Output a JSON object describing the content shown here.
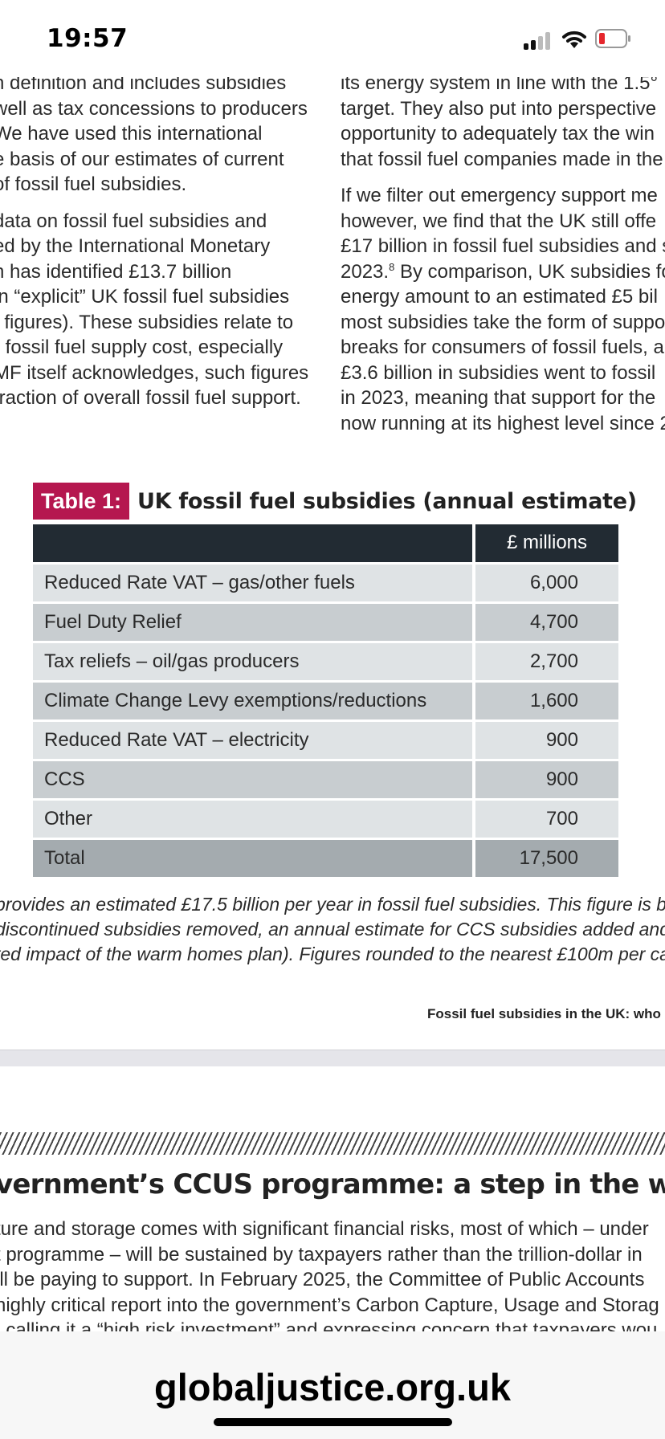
{
  "status_bar": {
    "time": "19:57"
  },
  "document": {
    "left_column": {
      "paragraph_1": [
        "n definition and includes subsidies",
        "well as tax concessions to producers",
        "We have used this international",
        "e basis of our estimates of current",
        "of fossil fuel subsidies."
      ],
      "paragraph_2": [
        "data on fossil fuel subsidies and",
        "ed by the International Monetary",
        "h has identified £13.7 billion",
        "in “explicit” UK fossil fuel subsidies",
        "t figures). These subsidies relate to",
        "r fossil fuel supply cost, especially",
        "MF itself acknowledges, such figures",
        " fraction of overall fossil fuel support."
      ]
    },
    "right_column": {
      "paragraph_1": [
        "its energy system in line with the 1.5°",
        "target. They also put into perspective",
        "opportunity to adequately tax the win",
        "that fossil fuel companies made in the"
      ],
      "paragraph_2": [
        "If we filter out emergency support me",
        "however, we find that the UK still offe",
        "£17 billion in fossil fuel subsidies and s",
        "2023.",
        "8",
        " By comparison, UK subsidies fo",
        "energy amount to an estimated £5 bil",
        "most subsidies take the form of suppo",
        "breaks for consumers of fossil fuels, a",
        "£3.6 billion in subsidies went to fossil",
        "in 2023, meaning that support for the",
        "now running at its highest level since 2"
      ]
    },
    "table": {
      "badge": "Table 1:",
      "title": "UK fossil fuel subsidies (annual estimate)",
      "header": {
        "name": "",
        "value": "£ millions"
      },
      "rows": [
        {
          "name": "Reduced Rate VAT – gas/other fuels",
          "value": "6,000"
        },
        {
          "name": "Fuel Duty Relief",
          "value": "4,700"
        },
        {
          "name": "Tax reliefs – oil/gas producers",
          "value": "2,700"
        },
        {
          "name": "Climate Change Levy exemptions/reductions",
          "value": "1,600"
        },
        {
          "name": "Reduced Rate VAT – electricity",
          "value": "900"
        },
        {
          "name": "CCS",
          "value": "900"
        },
        {
          "name": "Other",
          "value": "700"
        }
      ],
      "total": {
        "name": "Total",
        "value": "17,500"
      }
    },
    "caption": [
      "provides an estimated £17.5 billion per year in fossil fuel subsidies. This figure is bas",
      "discontinued subsidies removed, an annual estimate for CCS subsidies added and a sm",
      "ted impact of the warm homes plan). Figures rounded to the nearest £100m per ca"
    ],
    "running_footer": "Fossil fuel subsidies in the UK: who"
  },
  "next_page": {
    "heading": "vernment’s CCUS programme: a step in the wrong dir",
    "body": [
      "ture and storage comes with significant financial risks, most of which – under",
      "t programme – will be sustained by taxpayers rather than the trillion-dollar in",
      "ill be paying to support. In February 2025, the Committee of Public Accounts",
      "highly critical report into the government’s Carbon Capture, Usage and Storag",
      ", calling it a “high risk investment” and expressing concern that taxpayers wou"
    ]
  },
  "browser": {
    "url": "globaljustice.org.uk"
  }
}
